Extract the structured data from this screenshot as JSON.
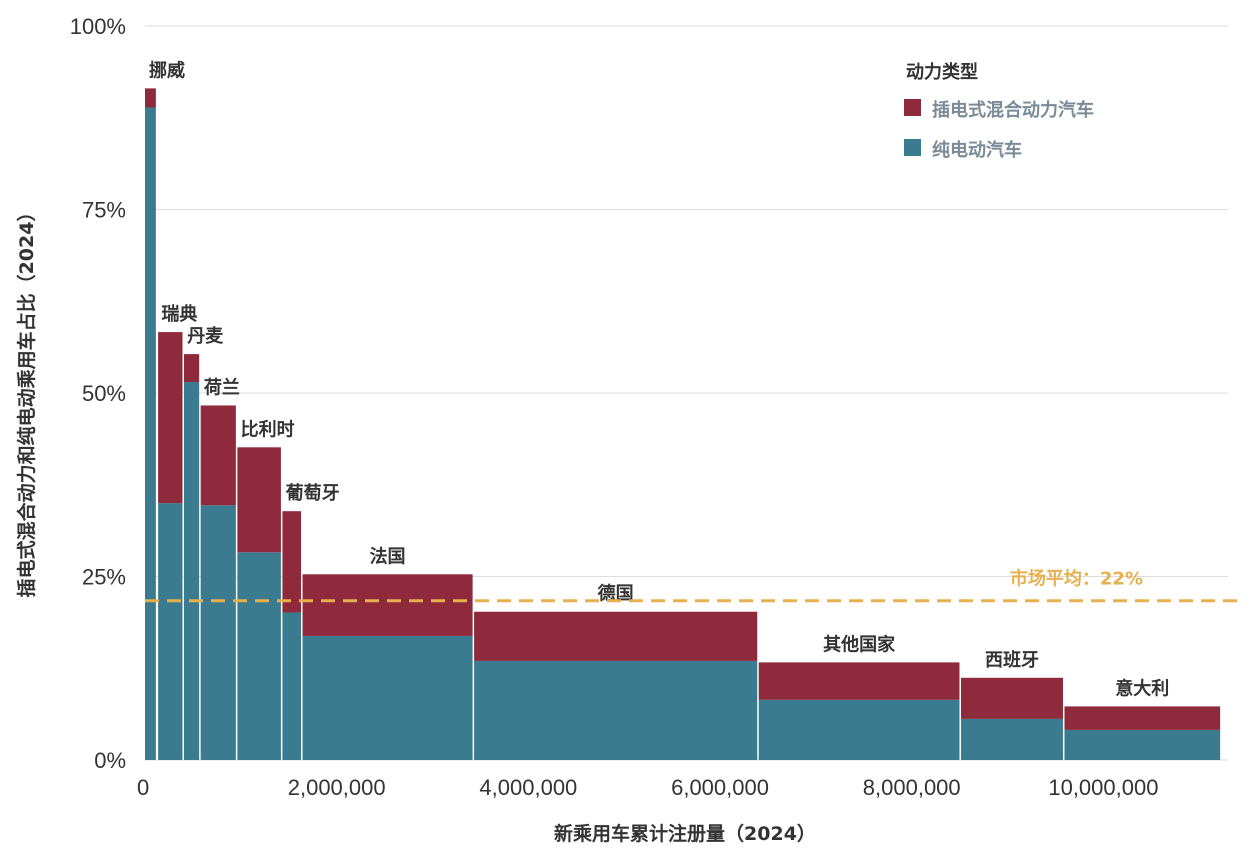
{
  "chart_data": {
    "type": "bar",
    "subtype": "marimekko",
    "xlabel": "新乘用车累计注册量（2024）",
    "ylabel": "插电式混合动力和纯电动乘用车占比（2024）",
    "xlim": [
      0,
      11300000
    ],
    "ylim": [
      0,
      100
    ],
    "x_ticks": [
      {
        "value": 0,
        "label": "0"
      },
      {
        "value": 2000000,
        "label": "2,000,000"
      },
      {
        "value": 4000000,
        "label": "4,000,000"
      },
      {
        "value": 6000000,
        "label": "6,000,000"
      },
      {
        "value": 8000000,
        "label": "8,000,000"
      },
      {
        "value": 10000000,
        "label": "10,000,000"
      }
    ],
    "y_ticks": [
      {
        "value": 0,
        "label": "0%"
      },
      {
        "value": 25,
        "label": "25%"
      },
      {
        "value": 50,
        "label": "50%"
      },
      {
        "value": 75,
        "label": "75%"
      },
      {
        "value": 100,
        "label": "100%"
      }
    ],
    "grid": "horizontal",
    "legend": {
      "title": "动力类型",
      "position": "top-right",
      "entries": [
        {
          "label": "插电式混合动力汽车",
          "color": "#8e2a3c"
        },
        {
          "label": "纯电动汽车",
          "color": "#3a7b8f"
        }
      ]
    },
    "colors": {
      "phev": "#8e2a3c",
      "bev": "#3a7b8f",
      "average": "#e7b04f"
    },
    "average": {
      "value": 21.7,
      "label": "市场平均：22%"
    },
    "categories": [
      {
        "name": "挪威",
        "registrations": 129000,
        "bev": 88.9,
        "phev": 2.6
      },
      {
        "name": "瑞典",
        "registrations": 270000,
        "bev": 35.0,
        "phev": 23.3
      },
      {
        "name": "丹麦",
        "registrations": 174000,
        "bev": 51.5,
        "phev": 3.8
      },
      {
        "name": "荷兰",
        "registrations": 383000,
        "bev": 34.7,
        "phev": 13.6
      },
      {
        "name": "比利时",
        "registrations": 470000,
        "bev": 28.3,
        "phev": 14.3
      },
      {
        "name": "葡萄牙",
        "registrations": 210000,
        "bev": 20.1,
        "phev": 13.8
      },
      {
        "name": "法国",
        "registrations": 1790000,
        "bev": 16.9,
        "phev": 8.4
      },
      {
        "name": "德国",
        "registrations": 2970000,
        "bev": 13.5,
        "phev": 6.7
      },
      {
        "name": "其他国家",
        "registrations": 2110000,
        "bev": 8.2,
        "phev": 5.1
      },
      {
        "name": "西班牙",
        "registrations": 1080000,
        "bev": 5.6,
        "phev": 5.6
      },
      {
        "name": "意大利",
        "registrations": 1640000,
        "bev": 4.1,
        "phev": 3.2
      }
    ]
  }
}
